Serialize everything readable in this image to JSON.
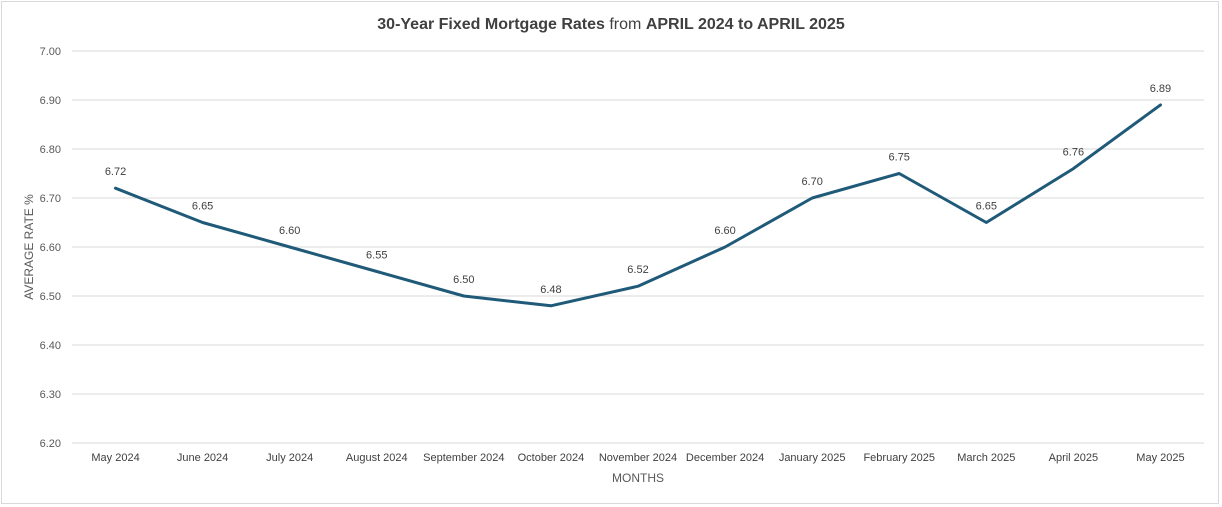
{
  "chart_data": {
    "type": "line",
    "title_part1": "30-Year Fixed Mortgage Rates",
    "title_part2": "from",
    "title_part3": "APRIL 2024 to APRIL 2025",
    "xlabel": "MONTHS",
    "ylabel": "AVERAGE RATE %",
    "ylim": [
      6.2,
      7.0
    ],
    "yticks": [
      "6.20",
      "6.30",
      "6.40",
      "6.50",
      "6.60",
      "6.70",
      "6.80",
      "6.90",
      "7.00"
    ],
    "grid": true,
    "line_color": "#1f5a78",
    "categories": [
      "May 2024",
      "June 2024",
      "July 2024",
      "August 2024",
      "September 2024",
      "October 2024",
      "November 2024",
      "December 2024",
      "January 2025",
      "February 2025",
      "March 2025",
      "April 2025",
      "May 2025"
    ],
    "values": [
      6.72,
      6.65,
      6.6,
      6.55,
      6.5,
      6.48,
      6.52,
      6.6,
      6.7,
      6.75,
      6.65,
      6.76,
      6.89
    ],
    "value_labels": [
      "6.72",
      "6.65",
      "6.60",
      "6.55",
      "6.50",
      "6.48",
      "6.52",
      "6.60",
      "6.70",
      "6.75",
      "6.65",
      "6.76",
      "6.89"
    ]
  }
}
